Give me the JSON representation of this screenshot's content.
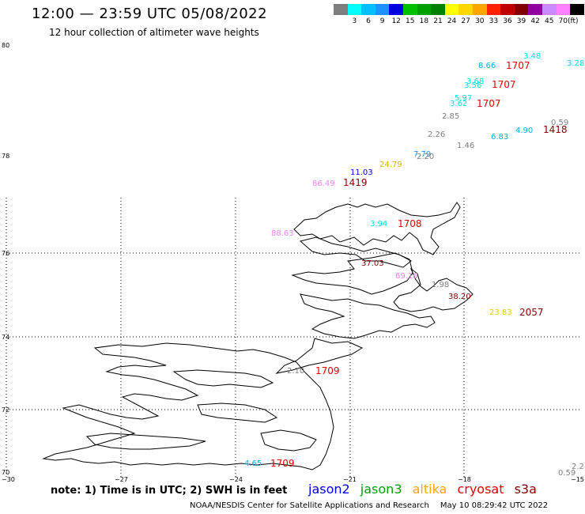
{
  "header": {
    "title": "12:00 — 23:59 UTC 05/08/2022",
    "subtitle": "12 hour collection of altimeter wave heights"
  },
  "legend": {
    "unit": "(ft)",
    "items": [
      {
        "label": "",
        "color": "#7f7f7f"
      },
      {
        "label": "3",
        "color": "#00ffff"
      },
      {
        "label": "6",
        "color": "#00bfff"
      },
      {
        "label": "9",
        "color": "#1e90ff"
      },
      {
        "label": "12",
        "color": "#0000e0"
      },
      {
        "label": "15",
        "color": "#00c000"
      },
      {
        "label": "18",
        "color": "#00a000"
      },
      {
        "label": "21",
        "color": "#008000"
      },
      {
        "label": "24",
        "color": "#ffff00"
      },
      {
        "label": "27",
        "color": "#ffd700"
      },
      {
        "label": "30",
        "color": "#ffa500"
      },
      {
        "label": "33",
        "color": "#ff2000"
      },
      {
        "label": "36",
        "color": "#c00000"
      },
      {
        "label": "39",
        "color": "#800000"
      },
      {
        "label": "42",
        "color": "#9000a0"
      },
      {
        "label": "45",
        "color": "#cc88ff"
      },
      {
        "label": "70",
        "color": "#ff80ff"
      },
      {
        "label": "",
        "color": "#000000"
      }
    ]
  },
  "axes": {
    "lat_labels": [
      "80",
      "78",
      "76",
      "74",
      "72",
      "70"
    ],
    "lon_labels": [
      "−30",
      "−27",
      "−24",
      "−21",
      "−18",
      "−15"
    ]
  },
  "observations": [
    {
      "text": "3.48",
      "color": "#00e5e5"
    },
    {
      "text": "3.28",
      "color": "#00e5e5"
    },
    {
      "text": "8.66",
      "color": "#00b0e0"
    },
    {
      "text": "1707",
      "color": "#e00000"
    },
    {
      "text": "3.68",
      "color": "#00e5e5"
    },
    {
      "text": "3.56",
      "color": "#00e5e5"
    },
    {
      "text": "1707",
      "color": "#e00000"
    },
    {
      "text": "5.97",
      "color": "#00e5e5"
    },
    {
      "text": "3.62",
      "color": "#00e5e5"
    },
    {
      "text": "1707",
      "color": "#e00000"
    },
    {
      "text": "2.85",
      "color": "#808080"
    },
    {
      "text": "0.59",
      "color": "#808080"
    },
    {
      "text": "1418",
      "color": "#800000"
    },
    {
      "text": "4.90",
      "color": "#00b0e0"
    },
    {
      "text": "2.26",
      "color": "#808080"
    },
    {
      "text": "6.83",
      "color": "#00b0e0"
    },
    {
      "text": "1.46",
      "color": "#808080"
    },
    {
      "text": "7.79",
      "color": "#1e90ff"
    },
    {
      "text": "2.20",
      "color": "#808080"
    },
    {
      "text": "24.79",
      "color": "#e0b000"
    },
    {
      "text": "11.03",
      "color": "#0000e0"
    },
    {
      "text": "86.49",
      "color": "#ee82ee"
    },
    {
      "text": "1419",
      "color": "#800000"
    },
    {
      "text": "3.94",
      "color": "#00e5e5"
    },
    {
      "text": "1708",
      "color": "#e00000"
    },
    {
      "text": "88.63",
      "color": "#ee82ee"
    },
    {
      "text": "37.03",
      "color": "#800000"
    },
    {
      "text": "69.16",
      "color": "#ee82ee"
    },
    {
      "text": "1.98",
      "color": "#808080"
    },
    {
      "text": "38.20",
      "color": "#800000"
    },
    {
      "text": "23.83",
      "color": "#e0d000"
    },
    {
      "text": "2057",
      "color": "#800000"
    },
    {
      "text": "2.10",
      "color": "#808080"
    },
    {
      "text": "1709",
      "color": "#e00000"
    },
    {
      "text": "4.65",
      "color": "#00b0e0"
    },
    {
      "text": "1709",
      "color": "#e00000"
    },
    {
      "text": "2.2",
      "color": "#808080"
    },
    {
      "text": "0.59",
      "color": "#808080"
    }
  ],
  "footer": {
    "note": "note: 1) Time is in UTC; 2) SWH is in feet",
    "satellites": [
      {
        "name": "jason2",
        "color": "#0000e0"
      },
      {
        "name": "jason3",
        "color": "#00a000"
      },
      {
        "name": "altika",
        "color": "#ffa500"
      },
      {
        "name": "cryosat",
        "color": "#e00000"
      },
      {
        "name": "s3a",
        "color": "#800000"
      }
    ],
    "credit": "NOAA/NESDIS Center for Satellite Applications and Research",
    "timestamp": "May 10 08:29:42 UTC 2022"
  }
}
